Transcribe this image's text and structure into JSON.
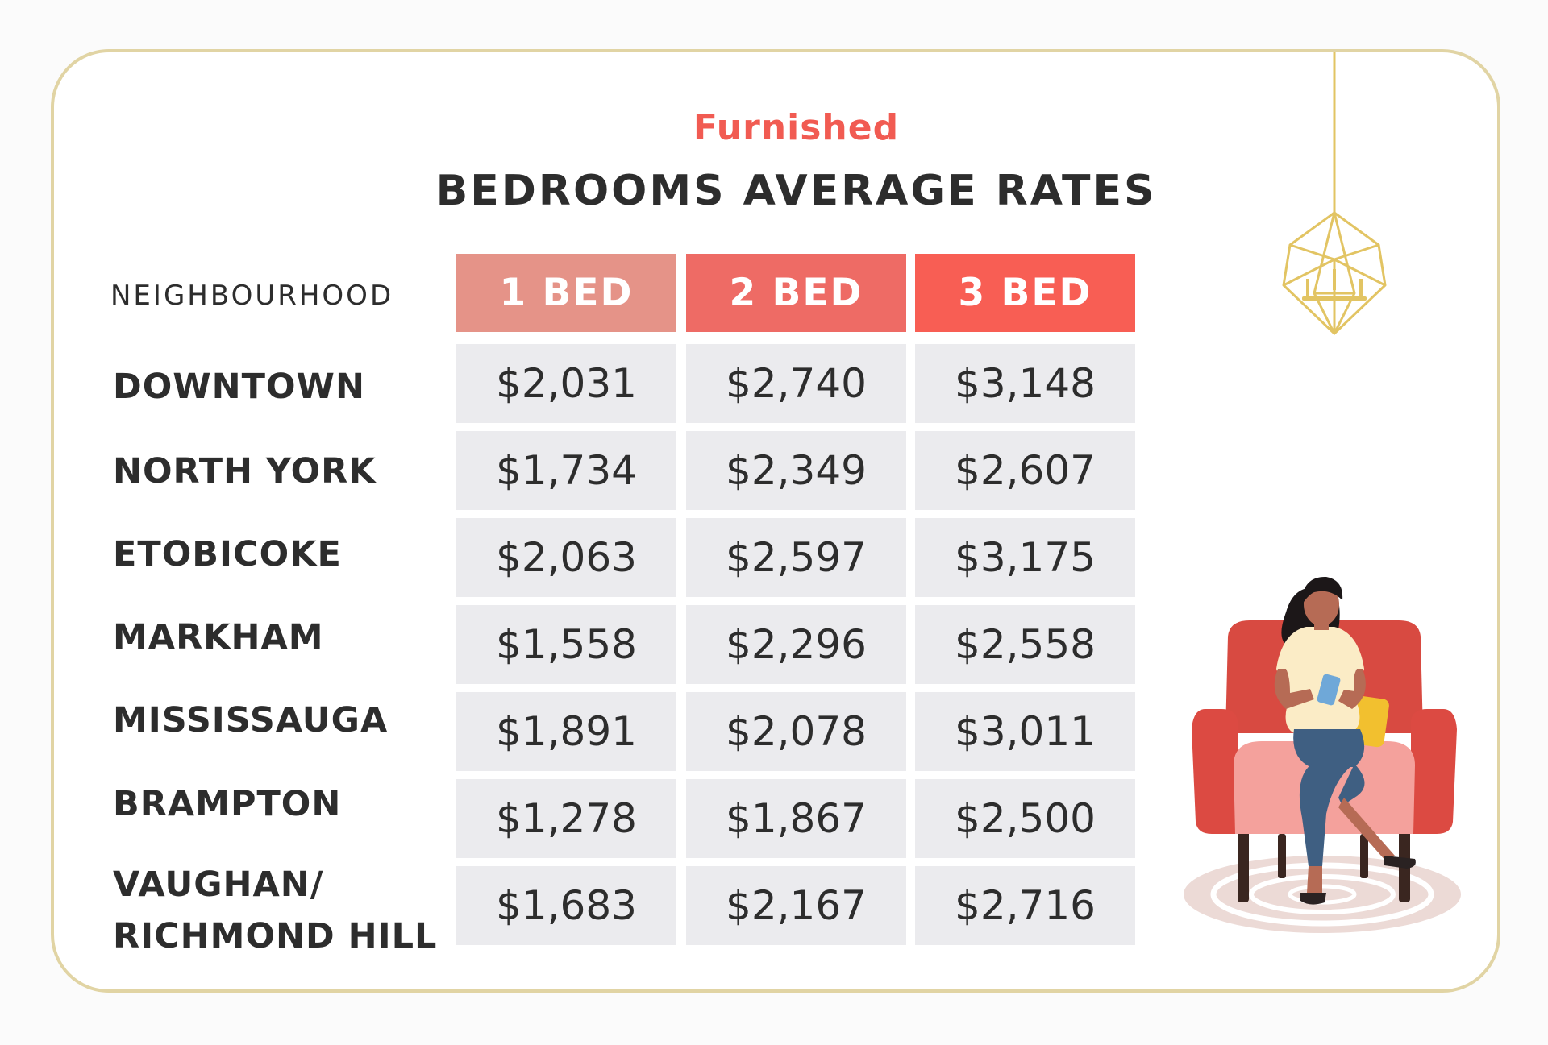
{
  "chart_data": {
    "type": "table",
    "subtitle": "Furnished",
    "title": "BEDROOMS AVERAGE RATES",
    "row_header": "NEIGHBOURHOOD",
    "columns": [
      "1 BED",
      "2 BED",
      "3 BED"
    ],
    "column_colors": [
      "#e59388",
      "#ee6b65",
      "#f85e54"
    ],
    "rows": [
      {
        "label": "DOWNTOWN",
        "values": [
          "$2,031",
          "$2,740",
          "$3,148"
        ]
      },
      {
        "label": "NORTH YORK",
        "values": [
          "$1,734",
          "$2,349",
          "$2,607"
        ]
      },
      {
        "label": "ETOBICOKE",
        "values": [
          "$2,063",
          "$2,597",
          "$3,175"
        ]
      },
      {
        "label": "MARKHAM",
        "values": [
          "$1,558",
          "$2,296",
          "$2,558"
        ]
      },
      {
        "label": "MISSISSAUGA",
        "values": [
          "$1,891",
          "$2,078",
          "$3,011"
        ]
      },
      {
        "label": "BRAMPTON",
        "values": [
          "$1,278",
          "$1,867",
          "$2,500"
        ]
      },
      {
        "label": "VAUGHAN/\nRICHMOND HILL",
        "values": [
          "$1,683",
          "$2,167",
          "$2,716"
        ]
      }
    ],
    "accent_color": "#f15b52",
    "border_color": "#e1d4a4"
  }
}
